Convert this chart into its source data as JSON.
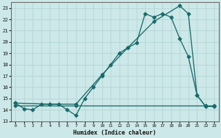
{
  "xlabel": "Humidex (Indice chaleur)",
  "xlim": [
    -0.5,
    23.5
  ],
  "ylim": [
    13,
    23.5
  ],
  "yticks": [
    13,
    14,
    15,
    16,
    17,
    18,
    19,
    20,
    21,
    22,
    23
  ],
  "xticks": [
    0,
    1,
    2,
    3,
    4,
    5,
    6,
    7,
    8,
    9,
    10,
    11,
    12,
    13,
    14,
    15,
    16,
    17,
    18,
    19,
    20,
    21,
    22,
    23
  ],
  "bg_color": "#cde8e8",
  "grid_color": "#b8d8d8",
  "line_color": "#1a6b6b",
  "line1_x": [
    0,
    1,
    2,
    3,
    4,
    5,
    6,
    7,
    8,
    9,
    10,
    11,
    12,
    13,
    14,
    15,
    16,
    17,
    18,
    19,
    20,
    21,
    22,
    23
  ],
  "line1_y": [
    14.6,
    14.1,
    14.0,
    14.5,
    14.5,
    14.5,
    14.0,
    13.5,
    15.0,
    16.0,
    17.0,
    18.0,
    19.0,
    19.5,
    19.9,
    22.5,
    22.2,
    22.5,
    22.2,
    20.3,
    18.7,
    15.3,
    14.3,
    14.3
  ],
  "line2_x": [
    0,
    4,
    7,
    10,
    13,
    16,
    19,
    20,
    21,
    22,
    23
  ],
  "line2_y": [
    14.6,
    14.5,
    14.5,
    17.1,
    19.5,
    21.8,
    23.2,
    22.5,
    15.3,
    14.3,
    14.3
  ],
  "line3_x": [
    0,
    7,
    22,
    23
  ],
  "line3_y": [
    14.4,
    14.4,
    14.4,
    14.4
  ],
  "markersize": 2.5,
  "linewidth": 1.0
}
